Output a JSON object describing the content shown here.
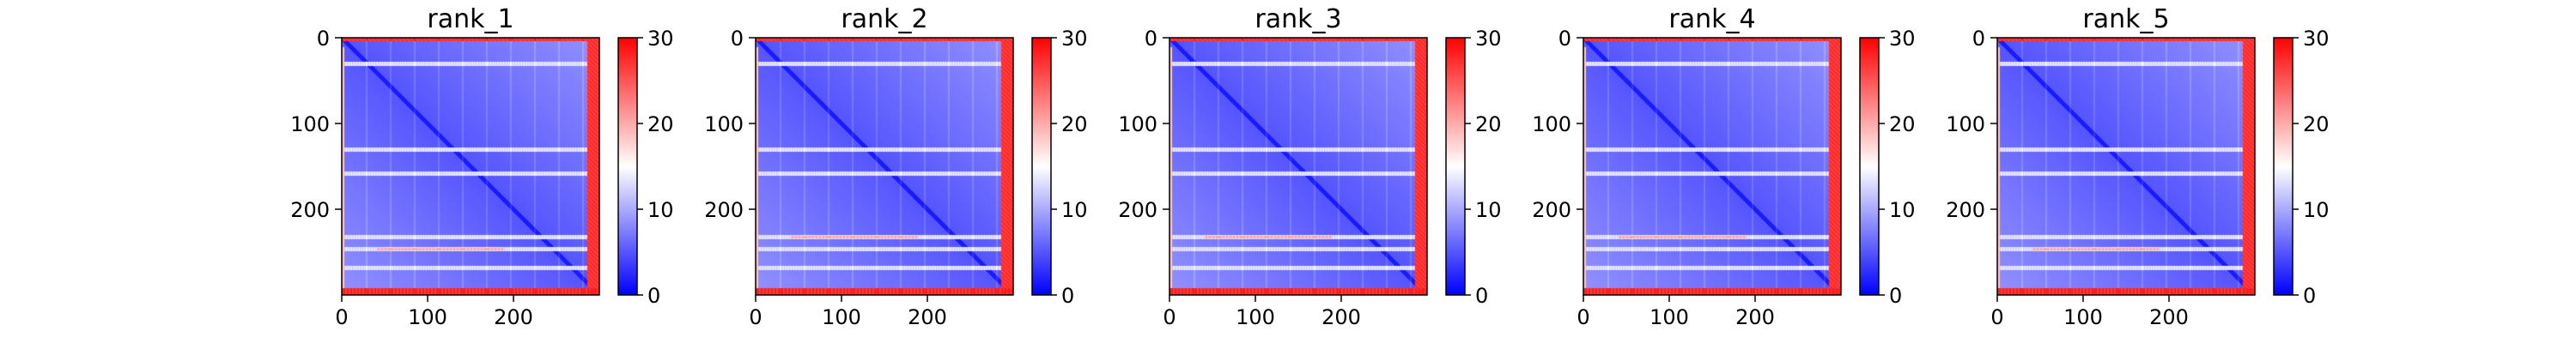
{
  "chart_data": [
    {
      "type": "heatmap",
      "title": "rank_1",
      "matrix_size": 300,
      "x_ticks": [
        0,
        100,
        200
      ],
      "y_ticks": [
        0,
        100,
        200
      ],
      "colorbar": {
        "colormap": "bwr",
        "range": [
          0,
          30
        ],
        "ticks": [
          0,
          10,
          20,
          30
        ]
      },
      "bands": {
        "high_rows": [
          0,
          292,
          299
        ],
        "high_cols": [
          0,
          286,
          299
        ],
        "light_rows": [
          30,
          130,
          158,
          232,
          246,
          268
        ],
        "accent_row": 246
      }
    },
    {
      "type": "heatmap",
      "title": "rank_2",
      "matrix_size": 300,
      "x_ticks": [
        0,
        100,
        200
      ],
      "y_ticks": [
        0,
        100,
        200
      ],
      "colorbar": {
        "colormap": "bwr",
        "range": [
          0,
          30
        ],
        "ticks": [
          0,
          10,
          20,
          30
        ]
      },
      "bands": {
        "high_rows": [
          0,
          292,
          299
        ],
        "high_cols": [
          0,
          286,
          299
        ],
        "light_rows": [
          30,
          130,
          158,
          232,
          246,
          268
        ],
        "accent_row": 232
      }
    },
    {
      "type": "heatmap",
      "title": "rank_3",
      "matrix_size": 300,
      "x_ticks": [
        0,
        100,
        200
      ],
      "y_ticks": [
        0,
        100,
        200
      ],
      "colorbar": {
        "colormap": "bwr",
        "range": [
          0,
          30
        ],
        "ticks": [
          0,
          10,
          20,
          30
        ]
      },
      "bands": {
        "high_rows": [
          0,
          292,
          299
        ],
        "high_cols": [
          0,
          286,
          299
        ],
        "light_rows": [
          30,
          130,
          158,
          232,
          246,
          268
        ],
        "accent_row": 232
      }
    },
    {
      "type": "heatmap",
      "title": "rank_4",
      "matrix_size": 300,
      "x_ticks": [
        0,
        100,
        200
      ],
      "y_ticks": [
        0,
        100,
        200
      ],
      "colorbar": {
        "colormap": "bwr",
        "range": [
          0,
          30
        ],
        "ticks": [
          0,
          10,
          20,
          30
        ]
      },
      "bands": {
        "high_rows": [
          0,
          292,
          299
        ],
        "high_cols": [
          0,
          286,
          299
        ],
        "light_rows": [
          30,
          130,
          158,
          232,
          246,
          268
        ],
        "accent_row": 232
      }
    },
    {
      "type": "heatmap",
      "title": "rank_5",
      "matrix_size": 300,
      "x_ticks": [
        0,
        100,
        200
      ],
      "y_ticks": [
        0,
        100,
        200
      ],
      "colorbar": {
        "colormap": "bwr",
        "range": [
          0,
          30
        ],
        "ticks": [
          0,
          10,
          20,
          30
        ]
      },
      "bands": {
        "high_rows": [
          0,
          292,
          299
        ],
        "high_cols": [
          0,
          286,
          299
        ],
        "light_rows": [
          30,
          130,
          158,
          232,
          246,
          268
        ],
        "accent_row": 246
      }
    }
  ]
}
